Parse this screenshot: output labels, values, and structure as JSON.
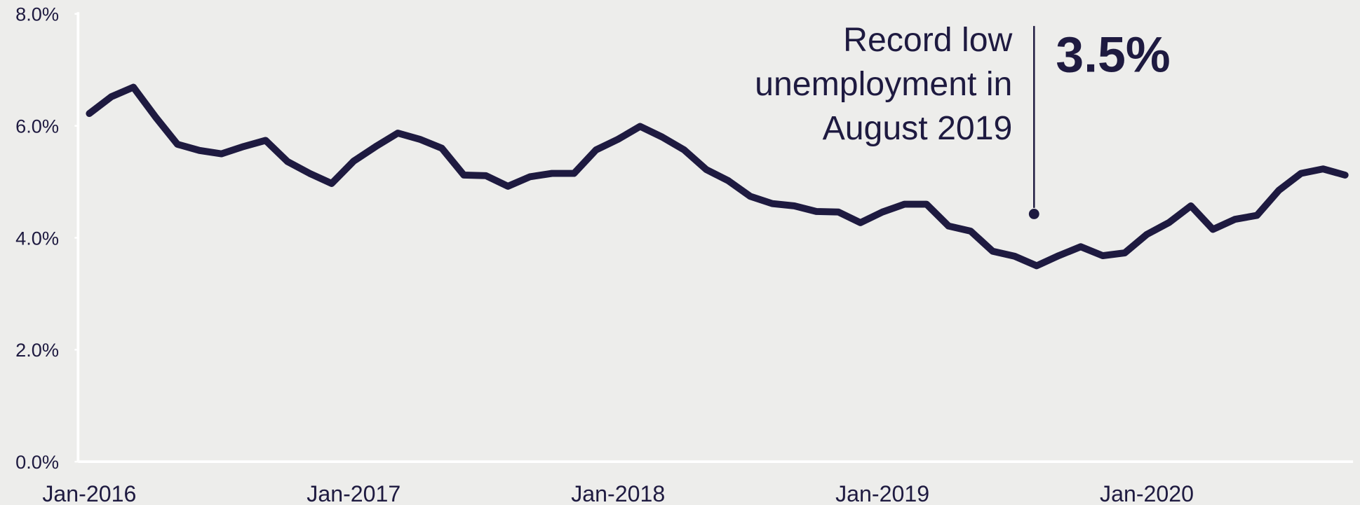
{
  "chart_data": {
    "type": "line",
    "categories": [
      "Jan-2016",
      null,
      null,
      null,
      null,
      null,
      null,
      null,
      null,
      null,
      null,
      null,
      "Jan-2017",
      null,
      null,
      null,
      null,
      null,
      null,
      null,
      null,
      null,
      null,
      null,
      "Jan-2018",
      null,
      null,
      null,
      null,
      null,
      null,
      null,
      null,
      null,
      null,
      null,
      "Jan-2019",
      null,
      null,
      null,
      null,
      null,
      null,
      null,
      null,
      null,
      null,
      null,
      "Jan-2020",
      null,
      null,
      null,
      null,
      null,
      null,
      null,
      null,
      null
    ],
    "series": [
      {
        "color": "#1e1a40",
        "values": [
          6.22,
          6.52,
          6.69,
          6.16,
          5.67,
          5.56,
          5.5,
          5.63,
          5.74,
          5.36,
          5.15,
          4.97,
          5.37,
          5.63,
          5.87,
          5.76,
          5.6,
          5.12,
          5.11,
          4.92,
          5.09,
          5.15,
          5.15,
          5.57,
          5.76,
          5.99,
          5.8,
          5.57,
          5.22,
          5.02,
          4.74,
          4.61,
          4.57,
          4.47,
          4.46,
          4.27,
          4.46,
          4.6,
          4.6,
          4.21,
          4.12,
          3.76,
          3.67,
          3.5,
          3.68,
          3.84,
          3.68,
          3.73,
          4.06,
          4.27,
          4.57,
          4.15,
          4.33,
          4.4,
          4.85,
          5.15,
          5.23,
          5.12
        ]
      }
    ],
    "ylim": [
      0,
      8
    ],
    "yticks": [
      {
        "value": 0,
        "label": "0.0%"
      },
      {
        "value": 2,
        "label": "2.0%"
      },
      {
        "value": 4,
        "label": "4.0%"
      },
      {
        "value": 6,
        "label": "6.0%"
      },
      {
        "value": 8,
        "label": "8.0%"
      }
    ],
    "annotation": {
      "text": [
        "Record low",
        "unemployment in",
        "August 2019"
      ],
      "value": 3.5,
      "label": "3.5%"
    }
  }
}
